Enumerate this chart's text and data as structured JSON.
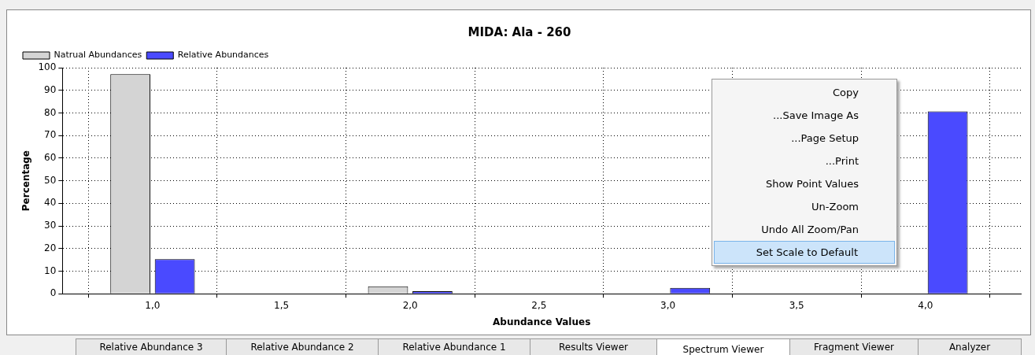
{
  "chart_data": {
    "type": "bar",
    "title": "MIDA: Ala - 260",
    "xlabel": "Abundance Values",
    "ylabel": "Percentage",
    "x": [
      1,
      2,
      3,
      4
    ],
    "series": [
      {
        "name": "Natrual Abundances",
        "color": "#d4d4d4",
        "values": [
          97.1,
          3.3,
          0,
          0
        ]
      },
      {
        "name": "Relative Abundances",
        "color": "#4a4aff",
        "values": [
          15.3,
          1.1,
          2.6,
          80.7
        ]
      }
    ],
    "xlim": [
      0.65,
      4.37
    ],
    "xticks": [
      {
        "value": 1,
        "label": "1,0"
      },
      {
        "value": 1.5,
        "label": "1,5"
      },
      {
        "value": 2,
        "label": "2,0"
      },
      {
        "value": 2.5,
        "label": "2,5"
      },
      {
        "value": 3,
        "label": "3,0"
      },
      {
        "value": 3.5,
        "label": "3,5"
      },
      {
        "value": 4,
        "label": "4,0"
      }
    ],
    "ylim": [
      0,
      100
    ],
    "yticks": [
      0,
      10,
      20,
      30,
      40,
      50,
      60,
      70,
      80,
      90,
      100
    ],
    "grid": true,
    "line_style": "dotted",
    "legend": "top left",
    "annotations": [
      "Copy",
      "...Save Image As",
      "...Page Setup",
      "...Print",
      "Show Point Values",
      "Un-Zoom",
      "Undo All Zoom/Pan",
      "Set Scale to Default",
      "Relative Abundance 3",
      "Relative Abundance 2",
      "Relative Abundance 1",
      "Results Viewer",
      "Spectrum Viewer",
      "Fragment Viewer",
      "Analyzer"
    ]
  }
}
